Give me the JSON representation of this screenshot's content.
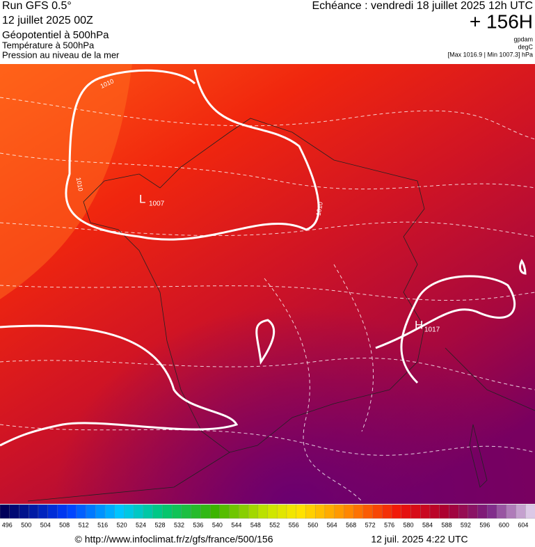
{
  "header": {
    "model": "Run GFS 0.5°",
    "run": "12 juillet 2025 00Z",
    "field1": "Géopotentiel à 500hPa",
    "field2": "Température à 500hPa",
    "field3": "Pression au niveau de la mer",
    "valid": "Echéance : vendredi 18 juillet 2025 12h UTC",
    "lead": "+ 156H",
    "unit1": "gpdam",
    "unit2": "degC",
    "range": "[Max 1016.9 | Min 1007.3] hPa"
  },
  "map": {
    "low": {
      "symbol": "L",
      "value": "1007"
    },
    "high": {
      "symbol": "H",
      "value": "1017"
    },
    "isobar_labels": [
      "1010",
      "1010",
      "1010"
    ]
  },
  "colorbar": {
    "labels": [
      496,
      500,
      504,
      508,
      512,
      516,
      520,
      524,
      528,
      532,
      536,
      540,
      544,
      548,
      552,
      556,
      560,
      564,
      568,
      572,
      576,
      580,
      584,
      588,
      592,
      596,
      600,
      604
    ]
  },
  "footer": {
    "url": "© http://www.infoclimat.fr/z/gfs/france/500/156",
    "time": "12 juil. 2025  4:22 UTC"
  }
}
